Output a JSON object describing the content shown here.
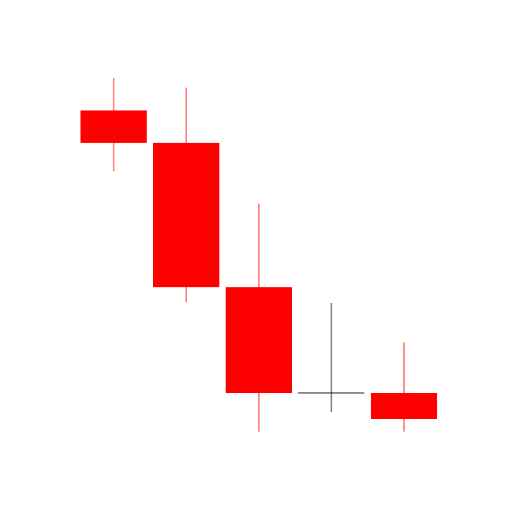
{
  "chart_data": {
    "type": "candlestick",
    "categories": [
      null,
      null,
      null,
      null,
      null
    ],
    "open": [
      500,
      459,
      276,
      142,
      142
    ],
    "high": [
      541,
      529,
      382,
      256,
      206
    ],
    "low": [
      423,
      257,
      93,
      118,
      93
    ],
    "close": [
      459,
      276,
      142,
      142,
      109
    ],
    "colors": [
      "#ff0000",
      "#ff0000",
      "#ff0000",
      "#000000",
      "#ff0000"
    ],
    "ylim": [
      0,
      640
    ]
  }
}
